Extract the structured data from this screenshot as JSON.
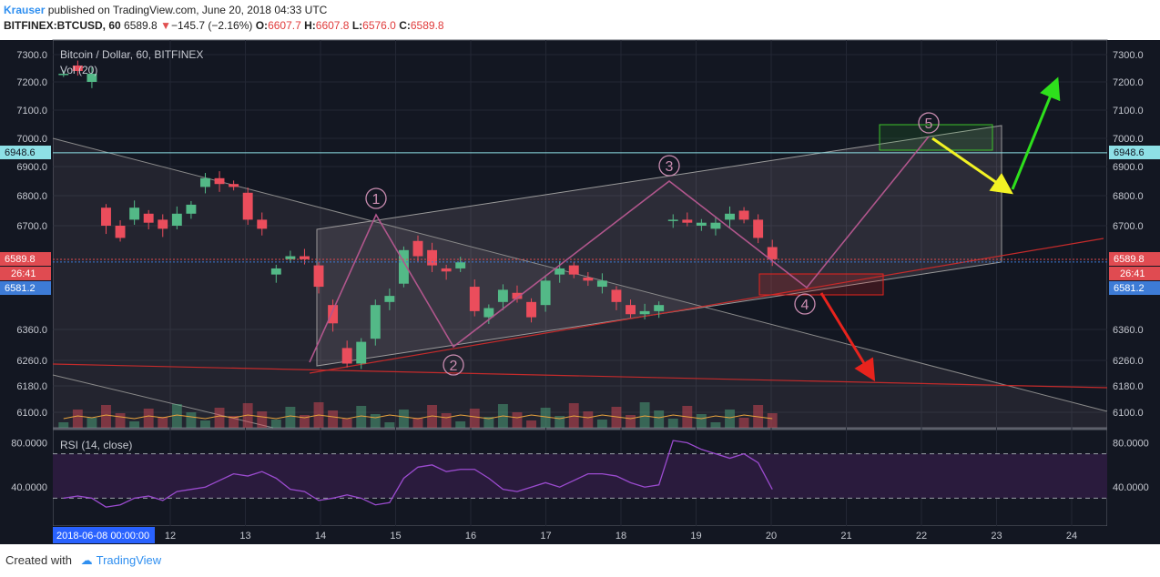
{
  "header": {
    "author": "Krauser",
    "published_text": " published on TradingView.com, June 20, 2018 04:33 UTC",
    "symbol_line": "BITFINEX:BTCUSD, 60",
    "last": "6589.8",
    "arrow": "▼",
    "change": "−145.7 (−2.16%)",
    "o_label": "O:",
    "o_value": "6607.7",
    "h_label": "H:",
    "h_value": "6607.8",
    "l_label": "L:",
    "l_value": "6576.0",
    "c_label": "C:",
    "c_value": "6589.8"
  },
  "legend": {
    "title": "Bitcoin / Dollar, 60, BITFINEX",
    "vol": "Vol (20)",
    "rsi": "RSI (14, close)"
  },
  "footer": {
    "created_with": "Created with",
    "brand": "TradingView"
  },
  "price_labels": {
    "resistance": "6948.6",
    "last": "6589.8",
    "countdown": "26:41",
    "ma": "6581.2"
  },
  "wave_labels": [
    "1",
    "2",
    "3",
    "4",
    "5"
  ],
  "colors": {
    "background": "#131722",
    "panel_border": "#5d606b",
    "up": "#53b987",
    "down": "#eb4d5c",
    "resistance_line": "#8ee0e6",
    "wave_path": "#b0568c",
    "rsi_line": "#9b4bcf",
    "rsi_fill": "#2a1b3d",
    "red_lines": "#c42b2b",
    "arrow_green": "#2ee01c",
    "arrow_yellow": "#f2f224",
    "arrow_red": "#e8231d",
    "last_label": "#e04b51",
    "ma_label": "#3d7bd6"
  },
  "chart_data": {
    "type": "candlestick",
    "title": "Bitcoin / Dollar, 60, BITFINEX",
    "ylim": [
      6060,
      7330
    ],
    "price_ticks": [
      "7300.0",
      "7200.0",
      "7100.0",
      "7000.0",
      "6900.0",
      "6800.0",
      "6700.0",
      "6360.0",
      "6260.0",
      "6180.0",
      "6100.0"
    ],
    "date_ticks": [
      "12",
      "13",
      "14",
      "15",
      "16",
      "17",
      "18",
      "19",
      "20",
      "21",
      "22",
      "23",
      "24"
    ],
    "start_date_label": "2018-06-08 00:00:00",
    "price_path": [
      [
        7230,
        7230
      ],
      [
        7260,
        7240
      ],
      [
        7200,
        7230
      ],
      [
        6760,
        6700
      ],
      [
        6700,
        6660
      ],
      [
        6720,
        6760
      ],
      [
        6740,
        6710
      ],
      [
        6720,
        6690
      ],
      [
        6700,
        6740
      ],
      [
        6740,
        6770
      ],
      [
        6830,
        6860
      ],
      [
        6860,
        6840
      ],
      [
        6840,
        6830
      ],
      [
        6810,
        6720
      ],
      [
        6720,
        6690
      ],
      [
        6540,
        6560
      ],
      [
        6590,
        6600
      ],
      [
        6600,
        6590
      ],
      [
        6570,
        6500
      ],
      [
        6440,
        6380
      ],
      [
        6300,
        6250
      ],
      [
        6250,
        6320
      ],
      [
        6330,
        6440
      ],
      [
        6450,
        6470
      ],
      [
        6510,
        6620
      ],
      [
        6650,
        6600
      ],
      [
        6620,
        6570
      ],
      [
        6560,
        6550
      ],
      [
        6560,
        6580
      ],
      [
        6500,
        6420
      ],
      [
        6400,
        6430
      ],
      [
        6450,
        6490
      ],
      [
        6480,
        6460
      ],
      [
        6450,
        6400
      ],
      [
        6440,
        6520
      ],
      [
        6540,
        6560
      ],
      [
        6570,
        6540
      ],
      [
        6530,
        6520
      ],
      [
        6500,
        6520
      ],
      [
        6490,
        6450
      ],
      [
        6440,
        6410
      ],
      [
        6410,
        6420
      ],
      [
        6420,
        6440
      ],
      [
        6720,
        6720
      ],
      [
        6720,
        6710
      ],
      [
        6700,
        6710
      ],
      [
        6690,
        6710
      ],
      [
        6720,
        6740
      ],
      [
        6750,
        6720
      ],
      [
        6720,
        6660
      ],
      [
        6630,
        6590
      ]
    ],
    "rsi": {
      "label": "RSI (14, close)",
      "levels": [
        70,
        30
      ],
      "tick_labels": [
        "80.0000",
        "40.0000"
      ],
      "values": [
        30,
        32,
        30,
        22,
        24,
        30,
        32,
        28,
        36,
        38,
        40,
        46,
        52,
        50,
        54,
        48,
        38,
        36,
        28,
        30,
        33,
        30,
        24,
        26,
        48,
        58,
        60,
        54,
        56,
        56,
        48,
        38,
        36,
        40,
        44,
        40,
        46,
        52,
        52,
        50,
        44,
        40,
        42,
        82,
        80,
        74,
        70,
        66,
        70,
        62,
        38
      ]
    },
    "annotations": {
      "resistance_level": 6948.6,
      "wave_count": [
        "1",
        "2",
        "3",
        "4",
        "5"
      ]
    }
  }
}
